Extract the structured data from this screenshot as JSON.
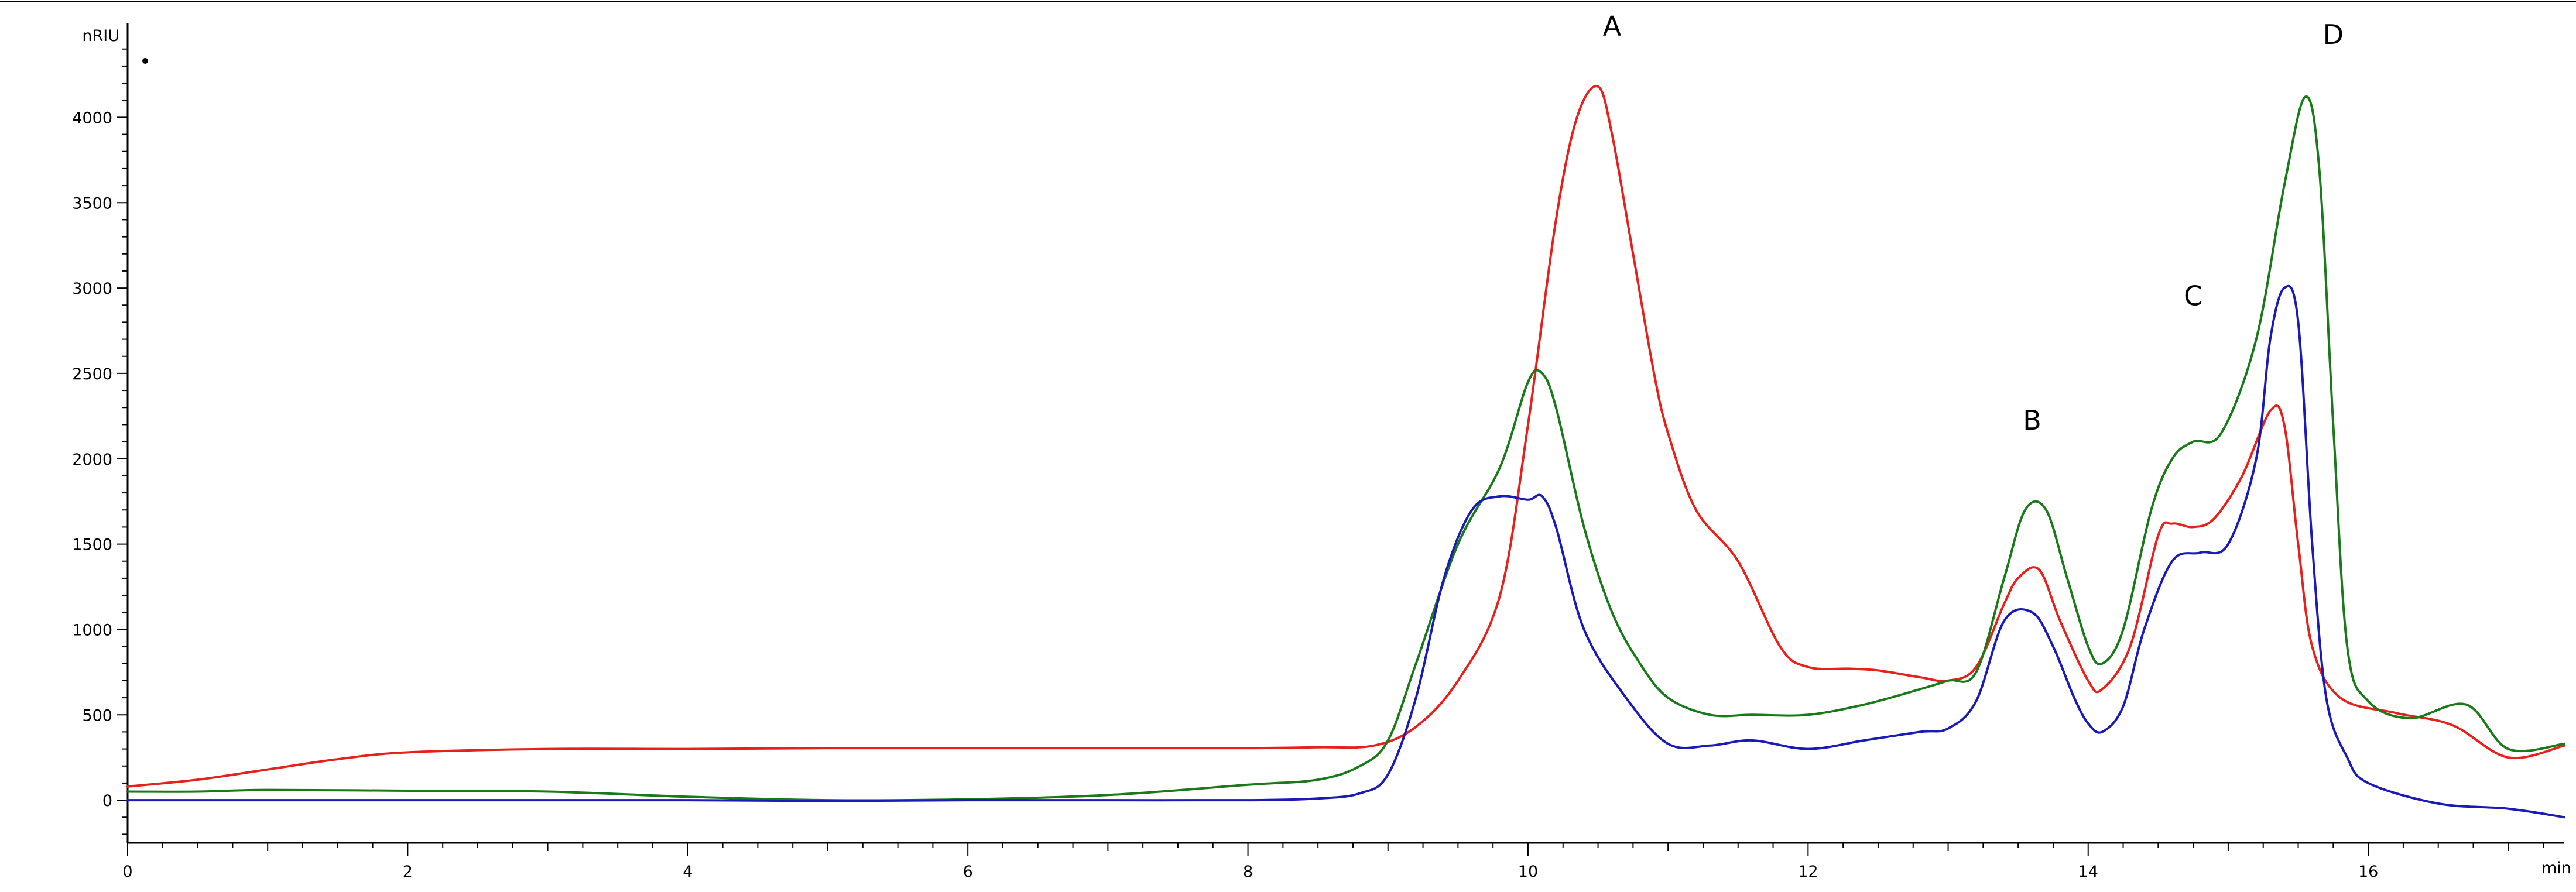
{
  "chart_data": {
    "type": "line",
    "ylabel": "nRIU",
    "xlabel": "min",
    "xlim": [
      0,
      17.4
    ],
    "ylim": [
      -250,
      4550
    ],
    "x_ticks": [
      0,
      2,
      4,
      6,
      8,
      10,
      12,
      14,
      16
    ],
    "y_ticks": [
      0,
      500,
      1000,
      1500,
      2000,
      2500,
      3000,
      3500,
      4000
    ],
    "grid": false,
    "legend": "none",
    "annotations": [
      {
        "text": "A",
        "x": 10.6,
        "y": 4480
      },
      {
        "text": "B",
        "x": 13.6,
        "y": 2170
      },
      {
        "text": "C",
        "x": 14.75,
        "y": 2900
      },
      {
        "text": "D",
        "x": 15.75,
        "y": 4430
      }
    ],
    "series": [
      {
        "color": "#e8201c",
        "x": [
          0,
          0.5,
          1,
          1.5,
          2,
          3,
          4,
          5,
          6,
          7,
          8,
          8.5,
          8.9,
          9.2,
          9.5,
          9.8,
          10.0,
          10.2,
          10.35,
          10.5,
          10.6,
          10.75,
          10.9,
          11.0,
          11.2,
          11.5,
          11.8,
          12.0,
          12.3,
          12.5,
          12.8,
          13.0,
          13.2,
          13.4,
          13.5,
          13.65,
          13.8,
          14.0,
          14.1,
          14.3,
          14.5,
          14.6,
          14.75,
          14.9,
          15.1,
          15.3,
          15.4,
          15.5,
          15.6,
          15.8,
          16.2,
          16.6,
          17.0,
          17.4
        ],
        "y": [
          80,
          120,
          180,
          240,
          280,
          300,
          300,
          305,
          305,
          305,
          305,
          310,
          320,
          430,
          700,
          1200,
          2200,
          3400,
          4000,
          4180,
          3900,
          3200,
          2500,
          2150,
          1700,
          1400,
          900,
          780,
          770,
          760,
          720,
          700,
          780,
          1150,
          1300,
          1350,
          1050,
          700,
          650,
          900,
          1550,
          1620,
          1600,
          1650,
          1900,
          2280,
          2200,
          1500,
          900,
          600,
          510,
          440,
          250,
          320
        ]
      },
      {
        "color": "#1a7a1a",
        "x": [
          0,
          0.5,
          1,
          2,
          3,
          4,
          5,
          6,
          7,
          8,
          8.5,
          8.8,
          9.0,
          9.2,
          9.5,
          9.8,
          10.0,
          10.1,
          10.2,
          10.4,
          10.6,
          10.8,
          11.0,
          11.3,
          11.6,
          12.0,
          12.4,
          12.8,
          13.0,
          13.2,
          13.4,
          13.55,
          13.7,
          13.85,
          14.0,
          14.1,
          14.25,
          14.45,
          14.6,
          14.75,
          14.95,
          15.2,
          15.4,
          15.55,
          15.65,
          15.75,
          15.85,
          16.0,
          16.3,
          16.7,
          17.0,
          17.4
        ],
        "y": [
          50,
          50,
          60,
          55,
          50,
          20,
          0,
          5,
          30,
          90,
          120,
          200,
          350,
          800,
          1500,
          1950,
          2450,
          2500,
          2300,
          1600,
          1100,
          800,
          600,
          500,
          500,
          500,
          560,
          650,
          700,
          750,
          1300,
          1700,
          1700,
          1300,
          900,
          800,
          1000,
          1700,
          2000,
          2100,
          2150,
          2700,
          3600,
          4120,
          3700,
          2200,
          900,
          580,
          480,
          560,
          300,
          330
        ]
      },
      {
        "color": "#1a1ab8",
        "x": [
          0,
          1,
          2,
          3,
          4,
          5,
          6,
          7,
          8,
          8.5,
          8.8,
          9.0,
          9.2,
          9.4,
          9.6,
          9.8,
          10.0,
          10.1,
          10.2,
          10.4,
          10.7,
          11.0,
          11.3,
          11.6,
          12.0,
          12.4,
          12.8,
          13.0,
          13.2,
          13.4,
          13.6,
          13.75,
          13.9,
          14.0,
          14.1,
          14.25,
          14.4,
          14.6,
          14.8,
          15.0,
          15.2,
          15.3,
          15.4,
          15.5,
          15.6,
          15.7,
          15.85,
          16.0,
          16.5,
          17.0,
          17.4
        ],
        "y": [
          0,
          0,
          0,
          0,
          0,
          -5,
          0,
          0,
          0,
          10,
          40,
          150,
          600,
          1300,
          1700,
          1780,
          1760,
          1780,
          1600,
          1000,
          600,
          330,
          320,
          350,
          300,
          350,
          400,
          420,
          580,
          1050,
          1100,
          900,
          600,
          450,
          400,
          550,
          1000,
          1400,
          1450,
          1500,
          2000,
          2700,
          3000,
          2800,
          1500,
          600,
          250,
          100,
          -20,
          -50,
          -100
        ]
      }
    ]
  }
}
